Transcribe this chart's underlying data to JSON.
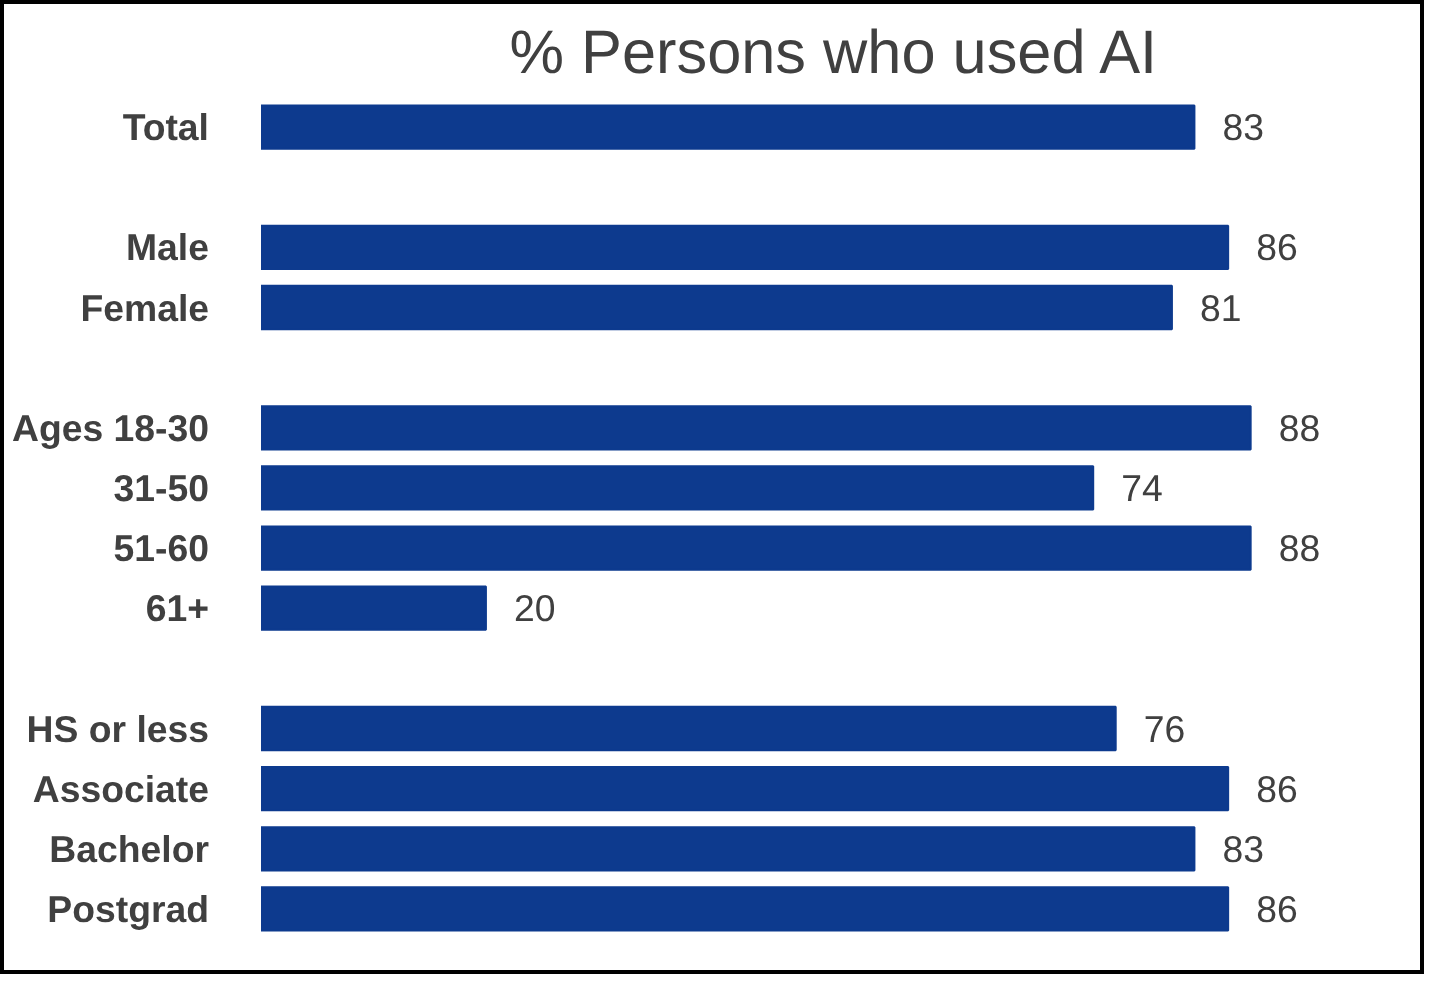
{
  "chart_data": {
    "type": "bar",
    "orientation": "horizontal",
    "title": "% Persons who used AI",
    "categories": [
      "Total",
      null,
      "Male",
      "Female",
      null,
      "Ages 18-30",
      "31-50",
      "51-60",
      "61+",
      null,
      "HS or less",
      "Associate",
      "Bachelor",
      "Postgrad"
    ],
    "values": [
      83,
      null,
      86,
      81,
      null,
      88,
      74,
      88,
      20,
      null,
      76,
      86,
      83,
      86
    ],
    "color": "#0d3a8e",
    "data_labels": true,
    "grid": false
  }
}
